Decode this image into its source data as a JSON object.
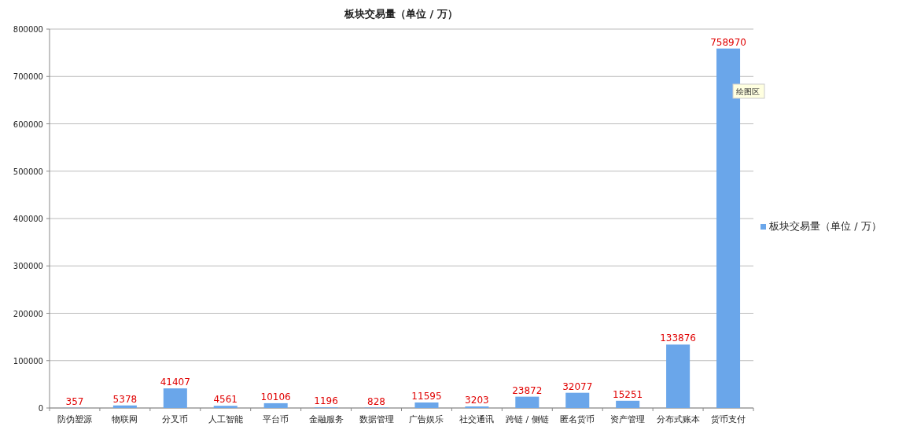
{
  "chart_data": {
    "type": "bar",
    "title": "板块交易量（单位 / 万）",
    "categories": [
      "防伪塑源",
      "物联网",
      "分叉币",
      "人工智能",
      "平台币",
      "金融服务",
      "数据管理",
      "广告娱乐",
      "社交通讯",
      "跨链 / 侧链",
      "匿名货币",
      "资产管理",
      "分布式账本",
      "货币支付"
    ],
    "series": [
      {
        "name": "板块交易量（单位 / 万）",
        "color": "#6aa6ea",
        "values": [
          357,
          5378,
          41407,
          4561,
          10106,
          1196,
          828,
          11595,
          3203,
          23872,
          32077,
          15251,
          133876,
          758970
        ]
      }
    ],
    "ylim": [
      0,
      800000
    ],
    "yticks": [
      0,
      100000,
      200000,
      300000,
      400000,
      500000,
      600000,
      700000,
      800000
    ],
    "grid": "y",
    "legend": "right",
    "data_labels": true,
    "annotations": [
      "绘图区"
    ]
  }
}
